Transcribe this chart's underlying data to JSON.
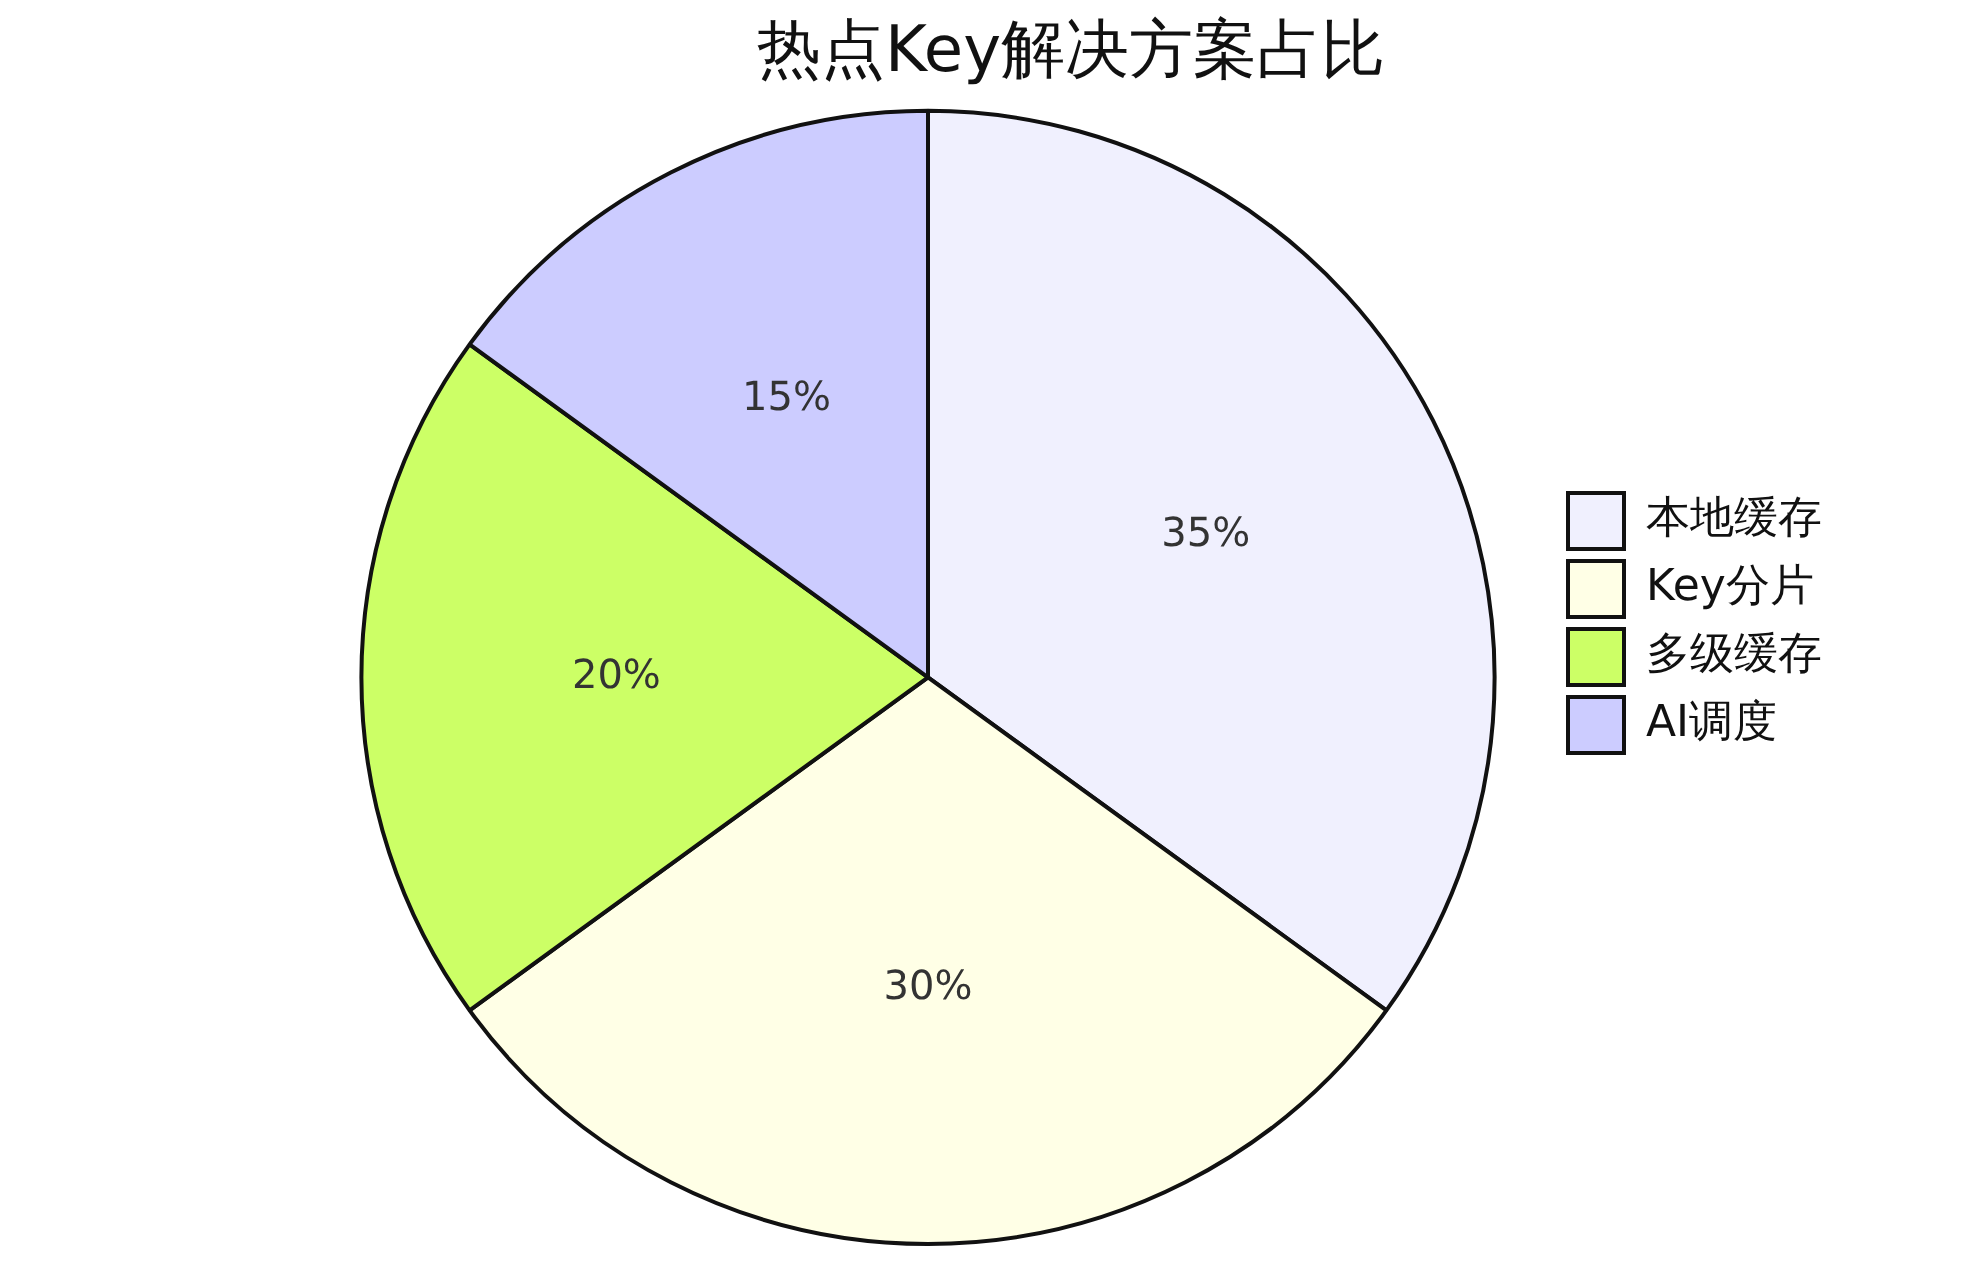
{
  "chart_data": {
    "type": "pie",
    "title": "热点Key解决方案占比",
    "categories": [
      "本地缓存",
      "Key分片",
      "多级缓存",
      "AI调度"
    ],
    "values": [
      35,
      30,
      20,
      15
    ],
    "value_labels": [
      "35%",
      "30%",
      "20%",
      "15%"
    ],
    "colors": [
      "#f0f0fe",
      "#ffffe6",
      "#ccff66",
      "#ccccff"
    ],
    "legend": "right"
  }
}
